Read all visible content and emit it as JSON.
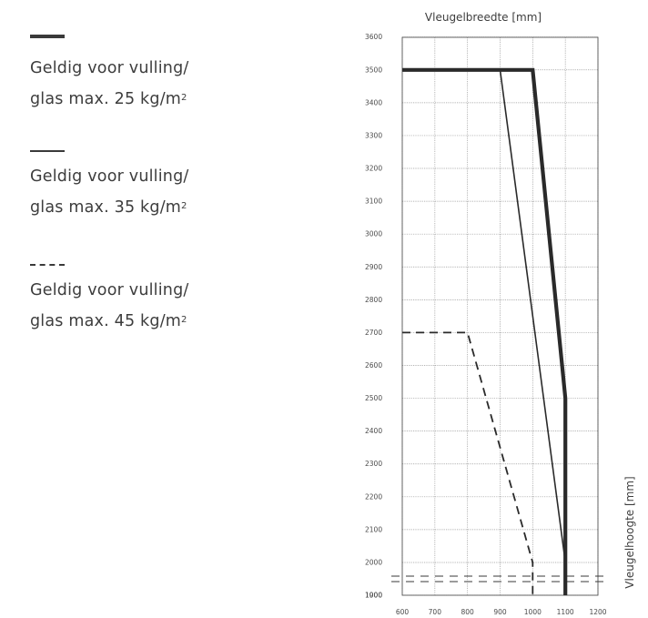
{
  "legend": {
    "entries": [
      {
        "line1": "Geldig voor vulling/",
        "line2": "glas max. 25 kg/m",
        "sup": "2",
        "style": "thick"
      },
      {
        "line1": "Geldig voor vulling/",
        "line2": "glas max. 35 kg/m",
        "sup": "2",
        "style": "thin"
      },
      {
        "line1": "Geldig voor vulling/",
        "line2": "glas max. 45 kg/m",
        "sup": "2",
        "style": "dashed"
      }
    ]
  },
  "chart_data": {
    "type": "line",
    "xlabel": "Vleugelbreedte [mm]",
    "ylabel": "Vleugelhoogte [mm]",
    "x_ticks": [
      "600",
      "700",
      "800",
      "900",
      "1000",
      "1100",
      "1200"
    ],
    "y_ticks": [
      "1000",
      "1900",
      "2000",
      "2100",
      "2200",
      "2300",
      "2400",
      "2500",
      "2600",
      "2700",
      "2800",
      "2900",
      "3000",
      "3100",
      "3200",
      "3300",
      "3400",
      "3500",
      "3600"
    ],
    "xlim": [
      600,
      1200
    ],
    "ylim": [
      1000,
      3600
    ],
    "y_axis_break": true,
    "grid": true,
    "colors": {
      "line": "#2a2a2a",
      "grid": "#9a9a9a",
      "frame": "#555555"
    },
    "series": [
      {
        "name": "Geldig voor vulling/glas max. 25 kg/m2",
        "style": "thick",
        "x": [
          600,
          1000,
          1100,
          1100
        ],
        "y": [
          3500,
          3500,
          2500,
          1000
        ]
      },
      {
        "name": "Geldig voor vulling/glas max. 35 kg/m2",
        "style": "thin",
        "x": [
          900,
          1100,
          1100
        ],
        "y": [
          3500,
          2000,
          1000
        ]
      },
      {
        "name": "Geldig voor vulling/glas max. 45 kg/m2",
        "style": "dashed",
        "x": [
          600,
          800,
          1000,
          1000
        ],
        "y": [
          2700,
          2700,
          2000,
          1000
        ]
      }
    ]
  }
}
